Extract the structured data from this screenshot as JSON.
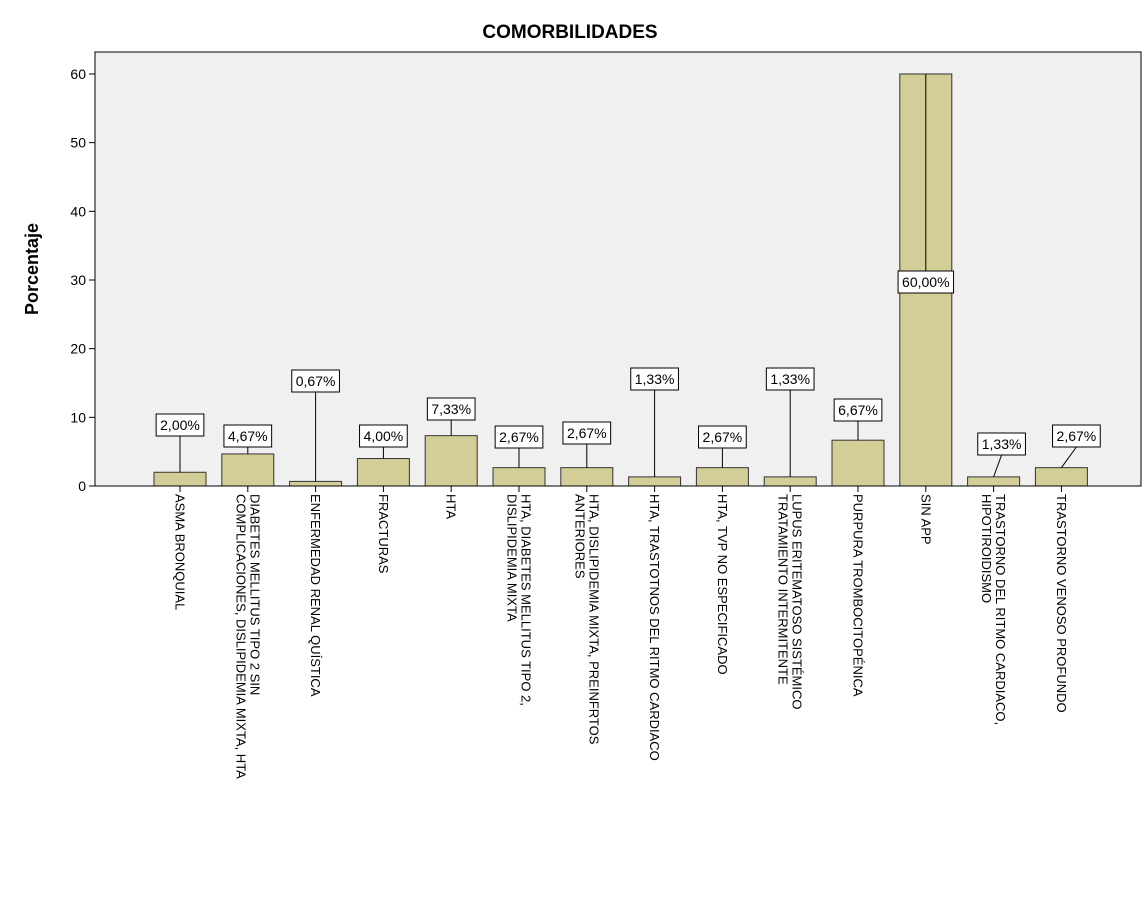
{
  "chart_data": {
    "type": "bar",
    "title": "COMORBILIDADES",
    "y_label": "Porcentaje",
    "categories": [
      "ASMA BRONQUIAL",
      "DIABETES MELLITUS TIPO 2 SIN\nCOMPLICACIONES, DISLIPIDEMIA MIXTA, HTA",
      "ENFERMEDAD RENAL QUÍSTICA",
      "FRACTURAS",
      "HTA",
      "HTA, DIABETES MELLITUS TIPO 2,\nDISLIPIDEMIA MIXTA",
      "HTA, DISLIPIDEMIA MIXTA, PREINFRTOS\nANTERIORES",
      "HTA, TRASTOTNOS DEL RITMO CARDIACO",
      "HTA, TVP NO ESPECIFICADO",
      "LUPUS ERITEMATOSO SISTÉMICO\nTRATAMIENTO INTERMITENTE",
      "PURPURA TROMBOCITOPÉNICA",
      "SIN APP",
      "TRASTORNO DEL RITMO CARDIACO,\nHIPOTIROIDISMO",
      "TRASTORNO VENOSO PROFUNDO"
    ],
    "values": [
      2.0,
      4.67,
      0.67,
      4.0,
      7.33,
      2.67,
      2.67,
      1.33,
      2.67,
      1.33,
      6.67,
      60.0,
      1.33,
      2.67
    ],
    "value_labels": [
      "2,00%",
      "4,67%",
      "0,67%",
      "4,00%",
      "7,33%",
      "2,67%",
      "2,67%",
      "1,33%",
      "2,67%",
      "1,33%",
      "6,67%",
      "60,00%",
      "1,33%",
      "2,67%"
    ],
    "color": "#d3ce97",
    "ylim": [
      0,
      63.2
    ],
    "yticks": [
      0,
      10,
      20,
      30,
      40,
      50,
      60
    ],
    "grid": false
  }
}
